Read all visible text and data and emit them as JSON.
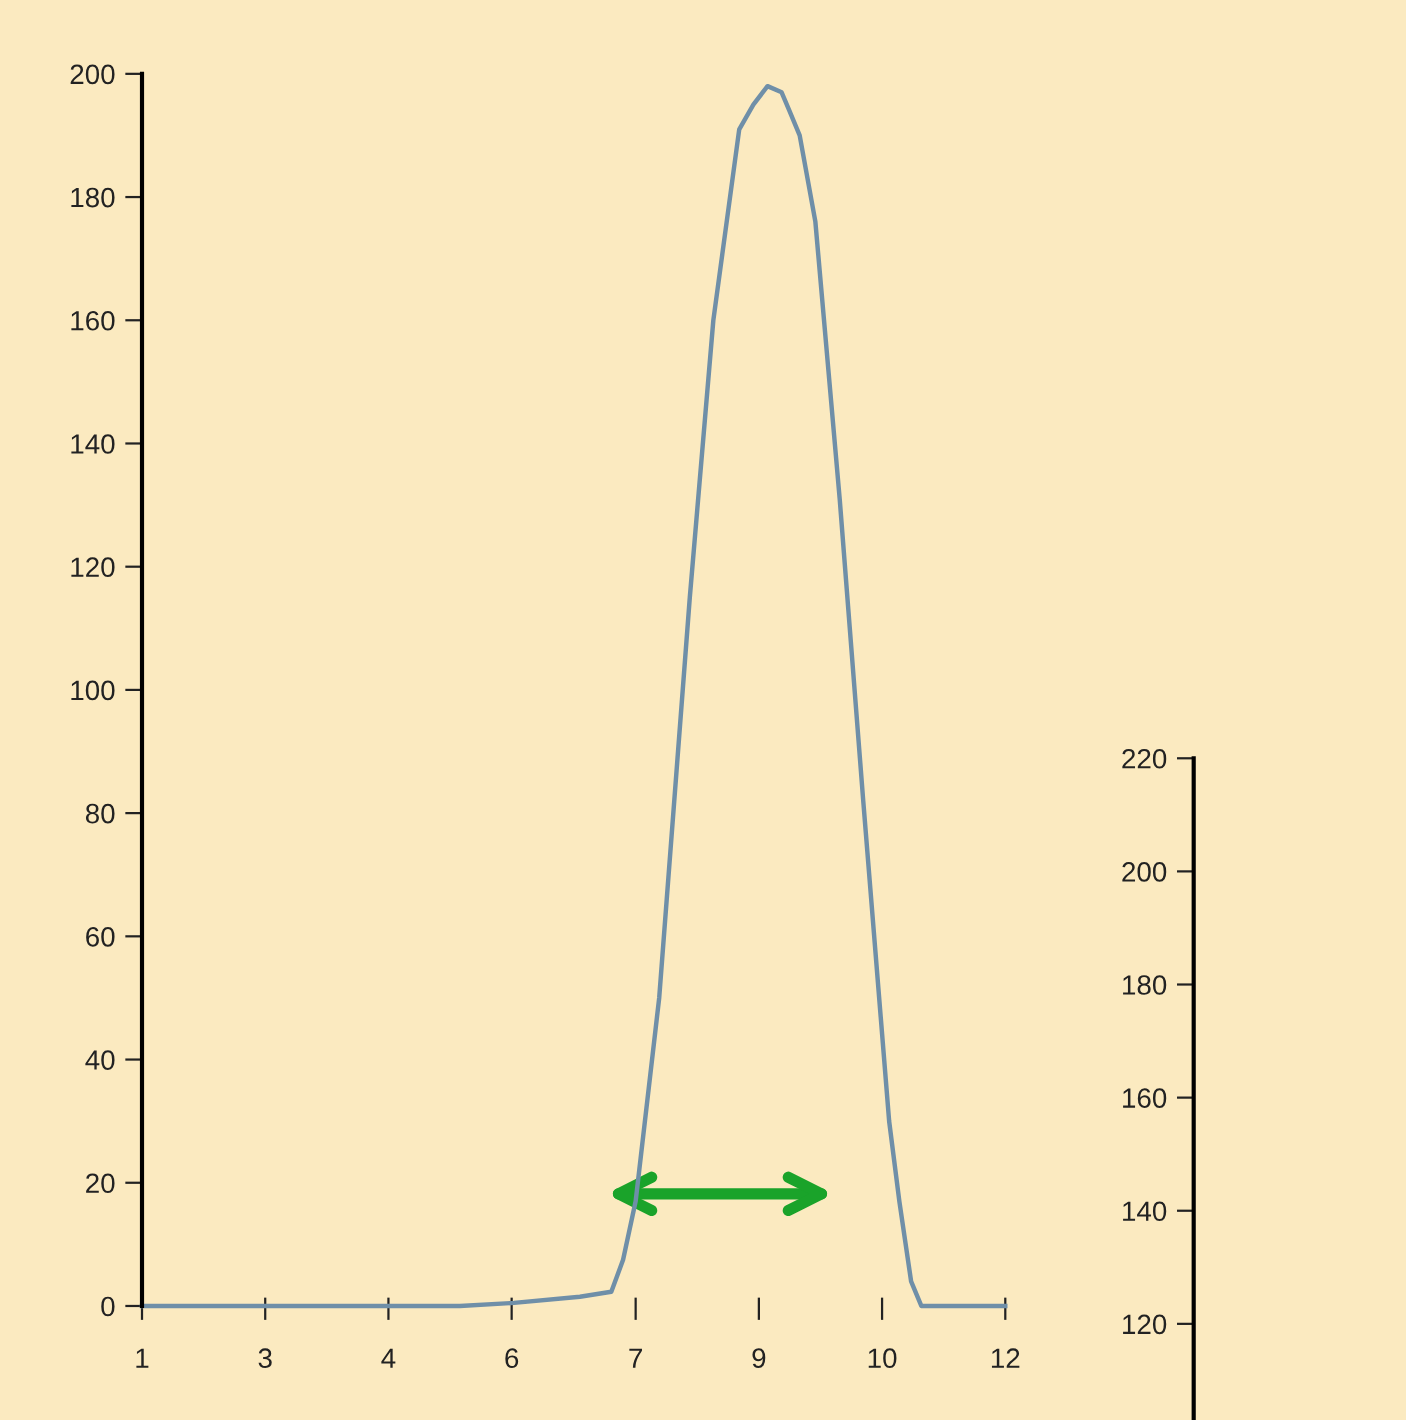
{
  "chart_data": [
    {
      "type": "line",
      "color": "#6f8fa8",
      "marker": "none",
      "line_style": "solid",
      "grid": false,
      "x": [
        1,
        5.05,
        5.74,
        6.58,
        6.98,
        7.13,
        7.29,
        7.59,
        7.98,
        8.28,
        8.61,
        8.79,
        8.97,
        9.15,
        9.25,
        9.38,
        9.58,
        9.89,
        10.19,
        10.52,
        10.65,
        10.8,
        10.93,
        12
      ],
      "values": [
        0,
        0,
        0.5,
        1.5,
        2.3,
        7.5,
        17,
        50,
        115,
        160,
        191,
        195,
        198,
        197,
        194,
        190,
        176,
        131,
        82,
        30,
        17,
        4,
        0,
        0
      ],
      "xlim": [
        1,
        12
      ],
      "xticks": [
        {
          "value": 1,
          "label": "1"
        },
        {
          "value": 2.57,
          "label": "3"
        },
        {
          "value": 4.14,
          "label": "4"
        },
        {
          "value": 5.71,
          "label": "6"
        },
        {
          "value": 7.29,
          "label": "7"
        },
        {
          "value": 8.86,
          "label": "9"
        },
        {
          "value": 10.43,
          "label": "10"
        },
        {
          "value": 12,
          "label": "12"
        }
      ],
      "ylim": [
        0,
        200
      ],
      "yticks": [
        0,
        20,
        40,
        60,
        80,
        100,
        120,
        140,
        160,
        180,
        200
      ],
      "y2lim": [
        103,
        220
      ],
      "y2ticks": [
        120,
        140,
        160,
        180,
        200,
        220
      ]
    }
  ]
}
